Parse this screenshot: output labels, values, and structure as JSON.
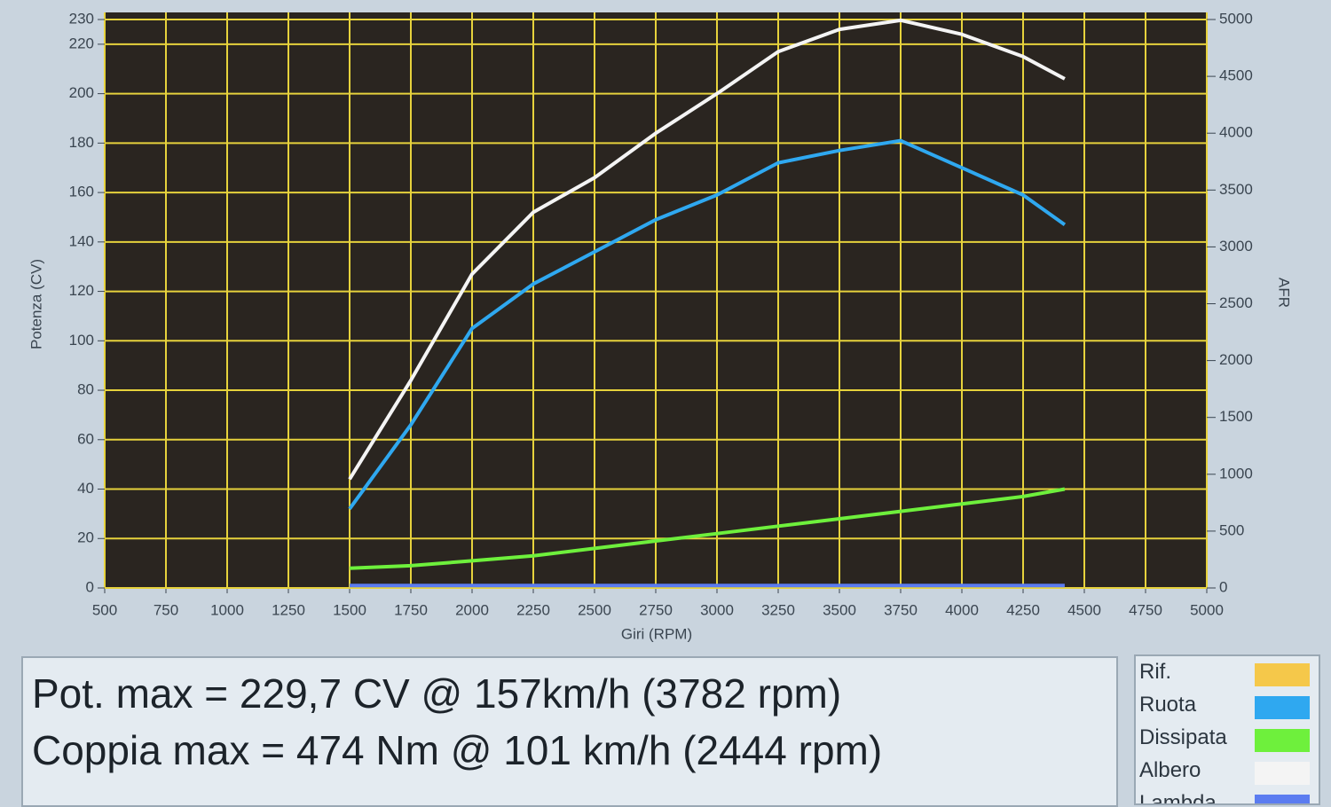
{
  "chart_data": {
    "type": "line",
    "x_label": "Giri (RPM)",
    "y_label": "Potenza (CV)",
    "y2_label": "AFR",
    "x": [
      1500,
      1750,
      2000,
      2250,
      2500,
      2750,
      3000,
      3250,
      3500,
      3750,
      4000,
      4250,
      4420
    ],
    "series": [
      {
        "name": "Rif.",
        "color": "#f5c84a",
        "values": [
          null,
          null,
          null,
          null,
          null,
          null,
          null,
          null,
          null,
          null,
          null,
          null,
          null
        ]
      },
      {
        "name": "Ruota",
        "color": "#2fa8f0",
        "values": [
          32,
          66,
          105,
          123,
          136,
          149,
          159,
          172,
          177,
          181,
          170,
          159,
          147
        ]
      },
      {
        "name": "Dissipata",
        "color": "#6ef03c",
        "values": [
          8,
          9,
          11,
          13,
          16,
          19,
          22,
          25,
          28,
          31,
          34,
          37,
          40
        ]
      },
      {
        "name": "Albero",
        "color": "#f4f4f4",
        "values": [
          44,
          84,
          127,
          152,
          166,
          184,
          200,
          217,
          226,
          229.7,
          224,
          215,
          206
        ]
      },
      {
        "name": "Lambda",
        "color": "#5b7cf0",
        "values": [
          1,
          1,
          1,
          1,
          1,
          1,
          1,
          1,
          1,
          1,
          1,
          1,
          1
        ]
      }
    ],
    "xlim": [
      500,
      5000
    ],
    "xticks": [
      500,
      750,
      1000,
      1250,
      1500,
      1750,
      2000,
      2250,
      2500,
      2750,
      3000,
      3250,
      3500,
      3750,
      4000,
      4250,
      4500,
      4750,
      5000
    ],
    "ylim": [
      0,
      230
    ],
    "yticks": [
      0,
      20,
      40,
      60,
      80,
      100,
      120,
      140,
      160,
      180,
      200,
      220,
      230
    ],
    "y2lim": [
      0,
      5000
    ],
    "y2ticks": [
      0,
      500,
      1000,
      1500,
      2000,
      2500,
      3000,
      3500,
      4000,
      4500,
      5000
    ],
    "grid": true,
    "grid_color": "#e6d23c",
    "info": [
      "Pot. max = 229,7 CV @ 157km/h (3782 rpm)",
      "Coppia max = 474 Nm @ 101 km/h (2444 rpm)"
    ]
  }
}
